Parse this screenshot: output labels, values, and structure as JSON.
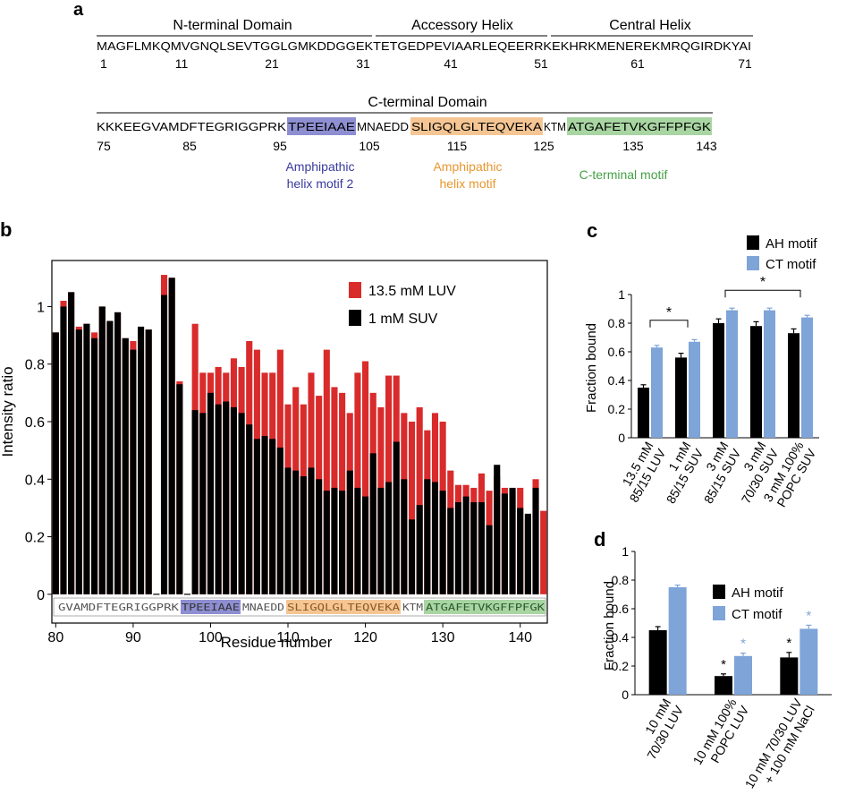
{
  "panel_a": {
    "label": "a",
    "row1": {
      "domains": [
        "N-terminal Domain",
        "Accessory Helix",
        "Central Helix"
      ],
      "sequence": "MAGFLMKQMVGNQLSEVTGGLGMKDDGGEKTETGEDPEVIAARLEQEERRKEKHRKMENEREKMRQGIRDKYAI",
      "ticks": [
        "1",
        "11",
        "21",
        "31",
        "41",
        "51",
        "61",
        "71"
      ]
    },
    "row2": {
      "domain": "C-terminal Domain",
      "seq_pre": "KKKEEGVAMDFTEGRIGGPRK",
      "seq_amph2": "TPEEIAAE",
      "seq_mid": "MNAEDD",
      "seq_amph": "SLIGQLGLTEQVEKA",
      "seq_ktm": "KTM",
      "seq_ct": "ATGAFETVKGFFPFGK",
      "ticks": [
        "75",
        "85",
        "95",
        "105",
        "115",
        "125",
        "135",
        "143"
      ],
      "motif_labels": {
        "amph2": [
          "Amphipathic",
          "helix motif 2"
        ],
        "amph": [
          "Amphipathic",
          "helix motif"
        ],
        "ct": "C-terminal motif"
      }
    },
    "colors": {
      "amph2": "#8e8ed2",
      "amph": "#f5c694",
      "ct": "#a8d5a2",
      "amph2_text": "#3a3a9e",
      "amph_text": "#e8962e",
      "ct_text": "#45a045"
    }
  },
  "chart_data": [
    {
      "panel": "b",
      "type": "bar",
      "xlabel": "Residue number",
      "ylabel": "Intensity ratio",
      "xlim": [
        79.5,
        143.5
      ],
      "ylim": [
        -0.1,
        1.16
      ],
      "x_ticks": [
        80,
        90,
        100,
        110,
        120,
        130,
        140
      ],
      "y_ticks": [
        0,
        0.2,
        0.4,
        0.6,
        0.8,
        1
      ],
      "x": [
        80,
        81,
        82,
        83,
        84,
        85,
        86,
        87,
        88,
        89,
        90,
        91,
        92,
        93,
        94,
        95,
        96,
        97,
        98,
        99,
        100,
        101,
        102,
        103,
        104,
        105,
        106,
        107,
        108,
        109,
        110,
        111,
        112,
        113,
        114,
        115,
        116,
        117,
        118,
        119,
        120,
        121,
        122,
        123,
        124,
        125,
        126,
        127,
        128,
        129,
        130,
        131,
        132,
        133,
        134,
        135,
        136,
        137,
        138,
        139,
        140,
        141,
        142,
        143
      ],
      "series": [
        {
          "name": "13.5 mM LUV",
          "color": "#d92b2b",
          "values": [
            0.91,
            1.02,
            1.05,
            0.93,
            0.94,
            0.91,
            1.0,
            0.95,
            0.98,
            0.89,
            0.88,
            0.93,
            0.92,
            0.0,
            1.11,
            1.1,
            0.74,
            0.0,
            0.94,
            0.77,
            0.77,
            0.79,
            0.77,
            0.82,
            0.79,
            0.88,
            0.85,
            0.77,
            0.77,
            0.85,
            0.66,
            0.72,
            0.66,
            0.77,
            0.69,
            0.85,
            0.72,
            0.7,
            0.63,
            0.77,
            0.81,
            0.7,
            0.65,
            0.76,
            0.76,
            0.63,
            0.6,
            0.65,
            0.57,
            0.63,
            0.6,
            0.43,
            0.38,
            0.38,
            0.37,
            0.42,
            0.36,
            0.41,
            0.37,
            0.36,
            0.37,
            0.26,
            0.4,
            0.29
          ]
        },
        {
          "name": "1 mM SUV",
          "color": "#000000",
          "values": [
            0.91,
            1.0,
            1.05,
            0.92,
            0.94,
            0.89,
            1.0,
            0.95,
            0.98,
            0.89,
            0.85,
            0.93,
            0.92,
            0.0,
            1.04,
            1.1,
            0.73,
            0.0,
            0.64,
            0.63,
            0.7,
            0.66,
            0.67,
            0.65,
            0.63,
            0.59,
            0.54,
            0.55,
            0.54,
            0.51,
            0.44,
            0.43,
            0.41,
            0.44,
            0.4,
            0.36,
            0.37,
            0.36,
            0.43,
            0.37,
            0.34,
            0.49,
            0.37,
            0.39,
            0.53,
            0.4,
            0.26,
            0.31,
            0.4,
            0.39,
            0.36,
            0.3,
            0.32,
            0.34,
            0.32,
            0.32,
            0.24,
            0.45,
            0.35,
            0.37,
            0.3,
            0.28,
            0.37,
            0.0
          ]
        }
      ],
      "series_overlay_note": "",
      "legend": [
        "13.5 mM LUV",
        "1 mM SUV"
      ],
      "legend_position": "top-right",
      "sequence_strip": {
        "pre": "GVAMDFTEGRIGGPRK",
        "amph2": "TPEEIAAE",
        "mid": "MNAEDD",
        "amph": "SLIGQLGLTEQVEKA",
        "ktm": "KTM",
        "ct": "ATGAFETVKGFFPFGK"
      }
    },
    {
      "panel": "c",
      "type": "bar",
      "ylabel": "Fraction bound",
      "ylim": [
        0,
        1
      ],
      "y_ticks": [
        0,
        0.2,
        0.4,
        0.6,
        0.8,
        1
      ],
      "categories": [
        [
          "13.5 mM",
          "85/15 LUV"
        ],
        [
          "1 mM",
          "85/15 SUV"
        ],
        [
          "3 mM",
          "85/15 SUV"
        ],
        [
          "3 mM",
          "70/30 SUV"
        ],
        [
          "3 mM 100%",
          "POPC SUV"
        ]
      ],
      "series": [
        {
          "name": "AH motif",
          "color": "#000000",
          "values": [
            0.35,
            0.56,
            0.8,
            0.78,
            0.73
          ],
          "errors": [
            0.02,
            0.03,
            0.03,
            0.03,
            0.03
          ]
        },
        {
          "name": "CT motif",
          "color": "#7ea4d8",
          "values": [
            0.63,
            0.67,
            0.89,
            0.89,
            0.84
          ],
          "errors": [
            0.015,
            0.015,
            0.015,
            0.015,
            0.015
          ]
        }
      ],
      "legend": [
        "AH motif",
        "CT motif"
      ],
      "legend_position": "top",
      "significance": [
        {
          "groups": [
            0,
            1
          ],
          "symbol": "*"
        },
        {
          "groups": [
            2,
            4
          ],
          "symbol": "*"
        }
      ]
    },
    {
      "panel": "d",
      "type": "bar",
      "ylabel": "Fraction bound",
      "ylim": [
        0,
        1
      ],
      "y_ticks": [
        0,
        0.2,
        0.4,
        0.6,
        0.8,
        1
      ],
      "categories": [
        [
          "10 mM",
          "70/30 LUV"
        ],
        [
          "10 mM 100%",
          "POPC LUV"
        ],
        [
          "10 mM 70/30 LUV",
          "+ 100 mM NaCl"
        ]
      ],
      "series": [
        {
          "name": "AH motif",
          "color": "#000000",
          "values": [
            0.45,
            0.13,
            0.26
          ],
          "errors": [
            0.025,
            0.015,
            0.035
          ],
          "star": [
            false,
            true,
            true
          ]
        },
        {
          "name": "CT motif",
          "color": "#7ea4d8",
          "values": [
            0.75,
            0.27,
            0.46
          ],
          "errors": [
            0.015,
            0.02,
            0.025
          ],
          "star": [
            false,
            true,
            true
          ]
        }
      ],
      "legend": [
        "AH motif",
        "CT motif"
      ],
      "legend_position": "top-right"
    }
  ],
  "labels": {
    "b": "b",
    "c": "c",
    "d": "d",
    "star": "*"
  }
}
